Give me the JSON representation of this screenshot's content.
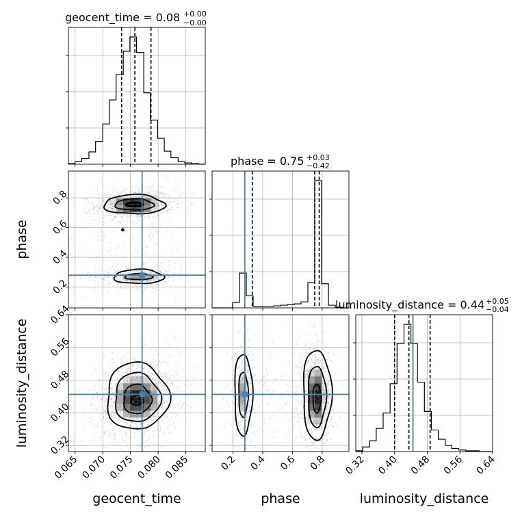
{
  "chart_data": {
    "type": "corner",
    "parameters": [
      "geocent_time",
      "phase",
      "luminosity_distance"
    ],
    "truths": [
      0.0771,
      0.28,
      0.445
    ],
    "grid": true,
    "titles": [
      {
        "parameter": "geocent_time",
        "main": "geocent_time = 0.08",
        "plus": "+0.00",
        "minus": "−0.00"
      },
      {
        "parameter": "phase",
        "main": "phase = 0.75",
        "plus": "+0.03",
        "minus": "−0.42"
      },
      {
        "parameter": "luminosity_distance",
        "main": "luminosity_distance = 0.44",
        "plus": "+0.05",
        "minus": "−0.04"
      }
    ],
    "ranges": {
      "geocent_time": [
        0.0638,
        0.0885
      ],
      "phase": [
        0.06,
        0.98
      ],
      "luminosity_distance": [
        0.305,
        0.64
      ]
    },
    "ticks": {
      "geocent_time": {
        "values": [
          0.065,
          0.07,
          0.075,
          0.08,
          0.085
        ],
        "labels": [
          "0.065",
          "0.070",
          "0.075",
          "0.080",
          "0.085"
        ]
      },
      "phase": {
        "values": [
          0.2,
          0.4,
          0.6,
          0.8
        ],
        "labels": [
          "0.2",
          "0.4",
          "0.6",
          "0.8"
        ]
      },
      "luminosity_distance": {
        "values": [
          0.32,
          0.4,
          0.48,
          0.56,
          0.64
        ],
        "labels": [
          "0.32",
          "0.40",
          "0.48",
          "0.56",
          "0.64"
        ]
      }
    },
    "quantiles": {
      "geocent_time": [
        0.0734,
        0.0758,
        0.0787
      ],
      "phase": [
        0.33,
        0.75,
        0.78
      ],
      "luminosity_distance": [
        0.4,
        0.435,
        0.487
      ]
    },
    "histograms": {
      "geocent_time": {
        "edges": [
          0.0638,
          0.065,
          0.0662,
          0.0675,
          0.0687,
          0.07,
          0.0712,
          0.0724,
          0.0737,
          0.0749,
          0.0761,
          0.0774,
          0.0786,
          0.0799,
          0.0811,
          0.0823,
          0.0836,
          0.0848,
          0.086,
          0.0873,
          0.0885
        ],
        "counts": [
          1,
          4,
          9,
          19,
          35,
          62,
          99,
          138,
          174,
          196,
          172,
          110,
          68,
          40,
          20,
          10,
          4,
          2,
          1,
          0
        ]
      },
      "phase": {
        "edges": [
          0.06,
          0.106,
          0.152,
          0.198,
          0.244,
          0.29,
          0.336,
          0.382,
          0.428,
          0.474,
          0.52,
          0.566,
          0.612,
          0.658,
          0.704,
          0.75,
          0.796,
          0.842,
          0.888,
          0.934,
          0.98
        ],
        "counts": [
          0,
          0,
          0,
          8,
          52,
          18,
          2,
          2,
          2,
          3,
          4,
          5,
          6,
          9,
          38,
          190,
          36,
          4,
          1,
          0
        ]
      },
      "luminosity_distance": {
        "edges": [
          0.305,
          0.322,
          0.339,
          0.355,
          0.372,
          0.389,
          0.406,
          0.423,
          0.44,
          0.456,
          0.473,
          0.49,
          0.507,
          0.524,
          0.54,
          0.557,
          0.574,
          0.591,
          0.607,
          0.624,
          0.64
        ],
        "counts": [
          1,
          6,
          14,
          30,
          50,
          88,
          140,
          165,
          140,
          90,
          52,
          28,
          16,
          8,
          4,
          2,
          1,
          1,
          0,
          0
        ]
      }
    },
    "panels_2d": [
      {
        "x": "geocent_time",
        "y": "phase",
        "clusters": [
          {
            "cx": 0.0757,
            "cy": 0.755,
            "sx": 0.0025,
            "sy": 0.035,
            "rho": 0.1,
            "weight": 0.7
          },
          {
            "cx": 0.0765,
            "cy": 0.27,
            "sx": 0.0028,
            "sy": 0.025,
            "rho": 0.1,
            "weight": 0.3
          },
          {
            "cx": 0.0762,
            "cy": 0.5,
            "sx": 0.0035,
            "sy": 0.18,
            "rho": 0.0,
            "weight": 0.12
          }
        ],
        "contours": [
          {
            "cx": 0.0757,
            "cy": 0.755,
            "rx": 0.0055,
            "ry": 0.065,
            "lw": 1.8
          },
          {
            "cx": 0.0757,
            "cy": 0.755,
            "rx": 0.0035,
            "ry": 0.038,
            "lw": 1.8
          },
          {
            "cx": 0.0757,
            "cy": 0.755,
            "rx": 0.0015,
            "ry": 0.012,
            "lw": 3.0
          },
          {
            "cx": 0.0765,
            "cy": 0.27,
            "rx": 0.0045,
            "ry": 0.048,
            "lw": 1.8
          },
          {
            "cx": 0.0765,
            "cy": 0.27,
            "rx": 0.0025,
            "ry": 0.02,
            "lw": 1.8
          },
          {
            "cx": 0.0736,
            "cy": 0.585,
            "rx": 0.0001,
            "ry": 0.004,
            "lw": 3.0
          }
        ]
      },
      {
        "x": "geocent_time",
        "y": "luminosity_distance",
        "clusters": [
          {
            "cx": 0.0762,
            "cy": 0.435,
            "sx": 0.0027,
            "sy": 0.035,
            "rho": 0.15,
            "weight": 1.0
          }
        ],
        "contours": [
          {
            "cx": 0.0762,
            "cy": 0.44,
            "rx": 0.0056,
            "ry": 0.082,
            "lw": 1.8
          },
          {
            "cx": 0.0762,
            "cy": 0.437,
            "rx": 0.0041,
            "ry": 0.06,
            "lw": 1.8
          },
          {
            "cx": 0.0762,
            "cy": 0.433,
            "rx": 0.0025,
            "ry": 0.036,
            "lw": 1.8
          },
          {
            "cx": 0.0762,
            "cy": 0.43,
            "rx": 0.0011,
            "ry": 0.012,
            "lw": 1.8
          }
        ]
      },
      {
        "x": "phase",
        "y": "luminosity_distance",
        "clusters": [
          {
            "cx": 0.76,
            "cy": 0.44,
            "sx": 0.04,
            "sy": 0.045,
            "rho": 0.0,
            "weight": 0.65
          },
          {
            "cx": 0.27,
            "cy": 0.445,
            "sx": 0.03,
            "sy": 0.045,
            "rho": 0.0,
            "weight": 0.3
          },
          {
            "cx": 0.5,
            "cy": 0.45,
            "sx": 0.16,
            "sy": 0.05,
            "rho": 0.0,
            "weight": 0.12
          }
        ],
        "contours": [
          {
            "cx": 0.765,
            "cy": 0.445,
            "rx": 0.095,
            "ry": 0.11,
            "lw": 1.8
          },
          {
            "cx": 0.765,
            "cy": 0.44,
            "rx": 0.06,
            "ry": 0.075,
            "lw": 1.8
          },
          {
            "cx": 0.765,
            "cy": 0.435,
            "rx": 0.028,
            "ry": 0.035,
            "lw": 1.8
          },
          {
            "cx": 0.27,
            "cy": 0.445,
            "rx": 0.06,
            "ry": 0.1,
            "lw": 1.8
          },
          {
            "cx": 0.27,
            "cy": 0.445,
            "rx": 0.032,
            "ry": 0.055,
            "lw": 1.8
          }
        ]
      }
    ]
  }
}
